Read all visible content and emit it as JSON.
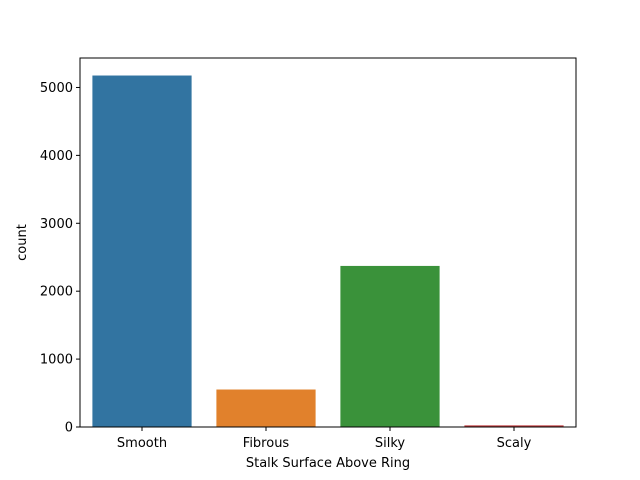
{
  "chart_data": {
    "type": "bar",
    "title": "",
    "xlabel": "Stalk Surface Above Ring",
    "ylabel": "count",
    "categories": [
      "Smooth",
      "Fibrous",
      "Silky",
      "Scaly"
    ],
    "values": [
      5176,
      552,
      2372,
      24
    ],
    "colors": [
      "#3274a1",
      "#e1812c",
      "#3a923a",
      "#c03d3e"
    ],
    "ylim": [
      0,
      5434
    ],
    "yticks": [
      0,
      1000,
      2000,
      3000,
      4000,
      5000
    ],
    "grid": false,
    "legend": "none"
  }
}
